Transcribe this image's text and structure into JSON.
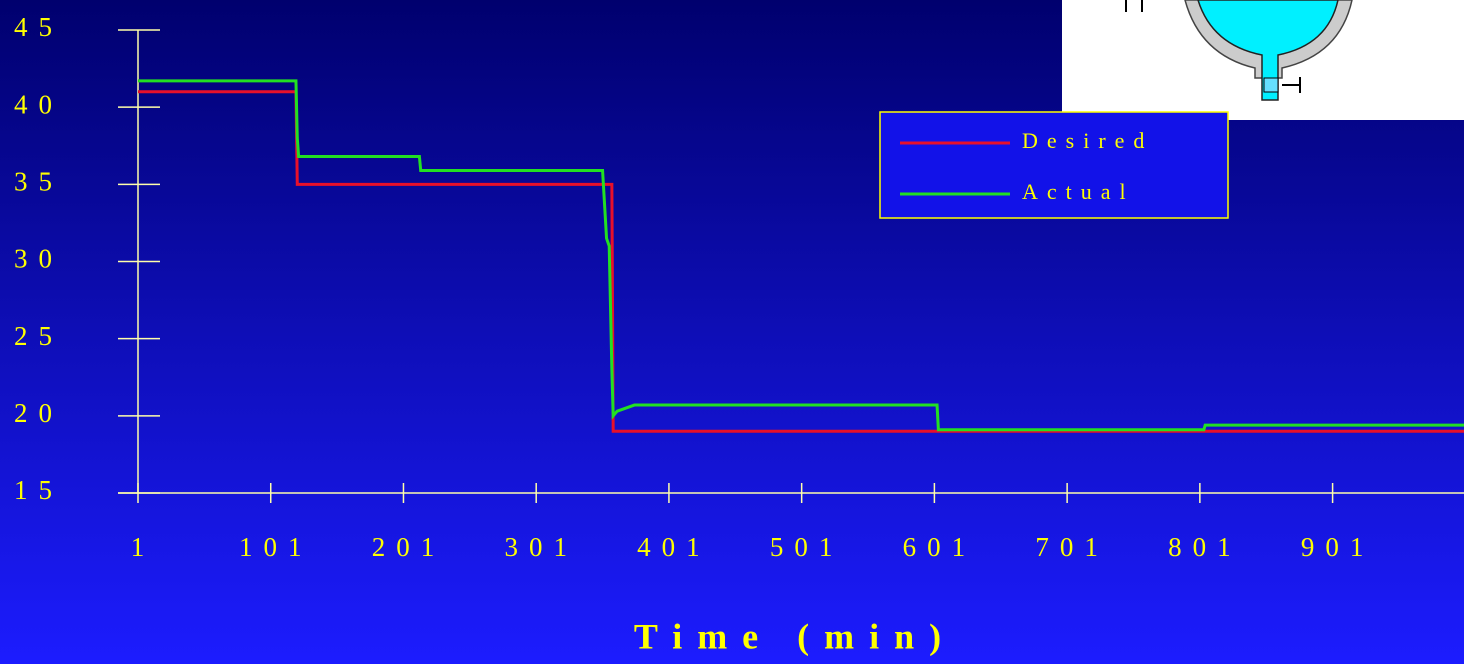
{
  "chart_data": {
    "type": "line",
    "x_label": "Time (min)",
    "x": [
      1,
      120,
      121,
      122,
      213,
      214,
      351,
      354,
      356,
      358,
      359,
      362,
      375,
      603,
      604,
      804,
      805,
      1000
    ],
    "series": [
      {
        "name": "Desired",
        "color": "#e8102a",
        "values": [
          41,
          41,
          35,
          35,
          35,
          35,
          35,
          35,
          35,
          35,
          19,
          19,
          19,
          19,
          19,
          19,
          19,
          19
        ]
      },
      {
        "name": "Actual",
        "color": "#22e022",
        "values": [
          41.7,
          41.7,
          38,
          36.8,
          36.8,
          35.9,
          35.9,
          31.5,
          31,
          23,
          20,
          20.3,
          20.7,
          20.7,
          19.1,
          19.1,
          19.4,
          19.4
        ]
      }
    ],
    "xlim": [
      1,
      1000
    ],
    "xticks": [
      1,
      101,
      201,
      301,
      401,
      501,
      601,
      701,
      801,
      901
    ],
    "ylim": [
      15,
      45
    ],
    "yticks": [
      15,
      20,
      25,
      30,
      35,
      40,
      45
    ]
  }
}
